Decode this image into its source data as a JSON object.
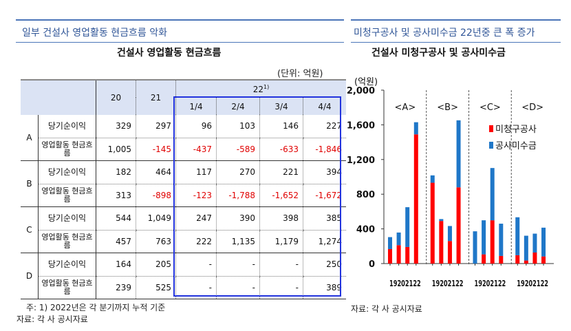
{
  "left": {
    "section_title": "일부 건설사 영업활동 현금흐름 악화",
    "table_title": "건설사 영업활동 현금흐름",
    "unit": "(단위: 억원)",
    "header": {
      "y20": "20",
      "y21": "21",
      "y22": "22",
      "y22_note": "1)",
      "quarters": [
        "1/4",
        "2/4",
        "3/4",
        "4/4"
      ]
    },
    "groups": [
      {
        "name": "A",
        "rows": [
          {
            "label": "당기순이익",
            "values": [
              "329",
              "297",
              "96",
              "103",
              "146",
              "227"
            ]
          },
          {
            "label": "영업활동 현금흐름",
            "values": [
              "1,005",
              "-145",
              "-437",
              "-589",
              "-633",
              "-1,846"
            ]
          }
        ]
      },
      {
        "name": "B",
        "rows": [
          {
            "label": "당기순이익",
            "values": [
              "182",
              "464",
              "117",
              "270",
              "221",
              "394"
            ]
          },
          {
            "label": "영업활동 현금흐름",
            "values": [
              "313",
              "-898",
              "-123",
              "-1,788",
              "-1,652",
              "-1,672"
            ]
          }
        ]
      },
      {
        "name": "C",
        "rows": [
          {
            "label": "당기순이익",
            "values": [
              "544",
              "1,049",
              "247",
              "390",
              "398",
              "385"
            ]
          },
          {
            "label": "영업활동 현금흐름",
            "values": [
              "457",
              "763",
              "222",
              "1,135",
              "1,179",
              "1,274"
            ]
          }
        ]
      },
      {
        "name": "D",
        "rows": [
          {
            "label": "당기순이익",
            "values": [
              "164",
              "205",
              "-",
              "-",
              "-",
              "250"
            ]
          },
          {
            "label": "영업활동 현금흐름",
            "values": [
              "239",
              "525",
              "-",
              "-",
              "-",
              "389"
            ]
          }
        ]
      }
    ],
    "footnote": "주: 1) 2022년은 각 분기까지 누적 기준",
    "source": "자료: 각 사 공시자료"
  },
  "right": {
    "section_title": "미청구공사 및 공사미수금 22년중 큰 폭 증가",
    "source": "자료: 각 사 공시자료"
  },
  "chart_data": {
    "type": "bar",
    "stacked": true,
    "title": "건설사 미청구공사 및 공사미수금",
    "ylabel": "(억원)",
    "ylim": [
      0,
      2000
    ],
    "yticks": [
      0,
      400,
      800,
      1200,
      1600,
      2000
    ],
    "ytick_labels": [
      "0",
      "400",
      "800",
      "1,200",
      "1,600",
      "2,000"
    ],
    "groups": [
      "<A>",
      "<B>",
      "<C>",
      "<D>"
    ],
    "categories": [
      "19",
      "20",
      "21",
      "22"
    ],
    "legend_position": "top-right",
    "colors": {
      "미청구공사": "#ff0000",
      "공사미수금": "#1f77c8"
    },
    "series": [
      {
        "name": "미청구공사",
        "values": [
          [
            167,
            212,
            191,
            1490
          ],
          [
            932,
            491,
            260,
            879
          ],
          [
            0,
            106,
            499,
            88
          ],
          [
            96,
            35,
            127,
            82
          ]
        ]
      },
      {
        "name": "공사미수금",
        "values": [
          [
            138,
            146,
            459,
            140
          ],
          [
            85,
            22,
            173,
            773
          ],
          [
            372,
            393,
            603,
            372
          ],
          [
            438,
            286,
            218,
            332
          ]
        ]
      }
    ]
  }
}
